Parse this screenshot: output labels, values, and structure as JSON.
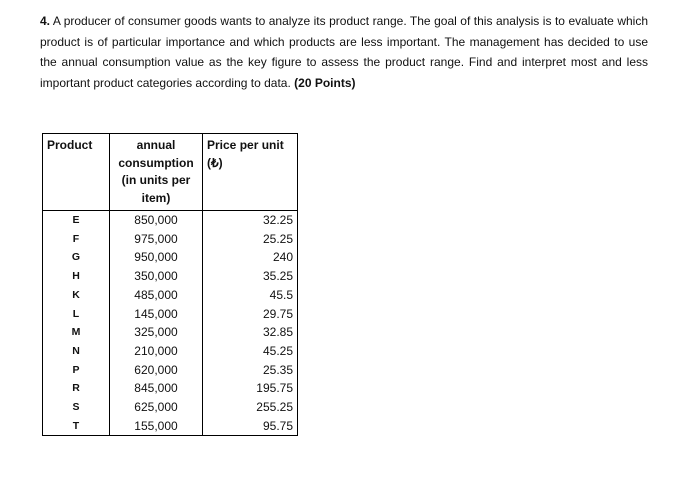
{
  "question": {
    "number": "4.",
    "body": "A producer of consumer goods wants to analyze its product range. The goal of this analysis is to evaluate which product is of particular importance and which products are less important. The management has decided to use the annual consumption value as the key figure to assess the product range. Find and interpret most and less important product categories according to data.",
    "points": "(20 Points)"
  },
  "table": {
    "header": [
      "Product",
      "annual consumption (in units per item)",
      "Price per unit (₺)"
    ],
    "rows": [
      [
        "E",
        "850,000",
        "32.25"
      ],
      [
        "F",
        "975,000",
        "25.25"
      ],
      [
        "G",
        "950,000",
        "240"
      ],
      [
        "H",
        "350,000",
        "35.25"
      ],
      [
        "K",
        "485,000",
        "45.5"
      ],
      [
        "L",
        "145,000",
        "29.75"
      ],
      [
        "M",
        "325,000",
        "32.85"
      ],
      [
        "N",
        "210,000",
        "45.25"
      ],
      [
        "P",
        "620,000",
        "25.35"
      ],
      [
        "R",
        "845,000",
        "195.75"
      ],
      [
        "S",
        "625,000",
        "255.25"
      ],
      [
        "T",
        "155,000",
        "95.75"
      ]
    ]
  }
}
